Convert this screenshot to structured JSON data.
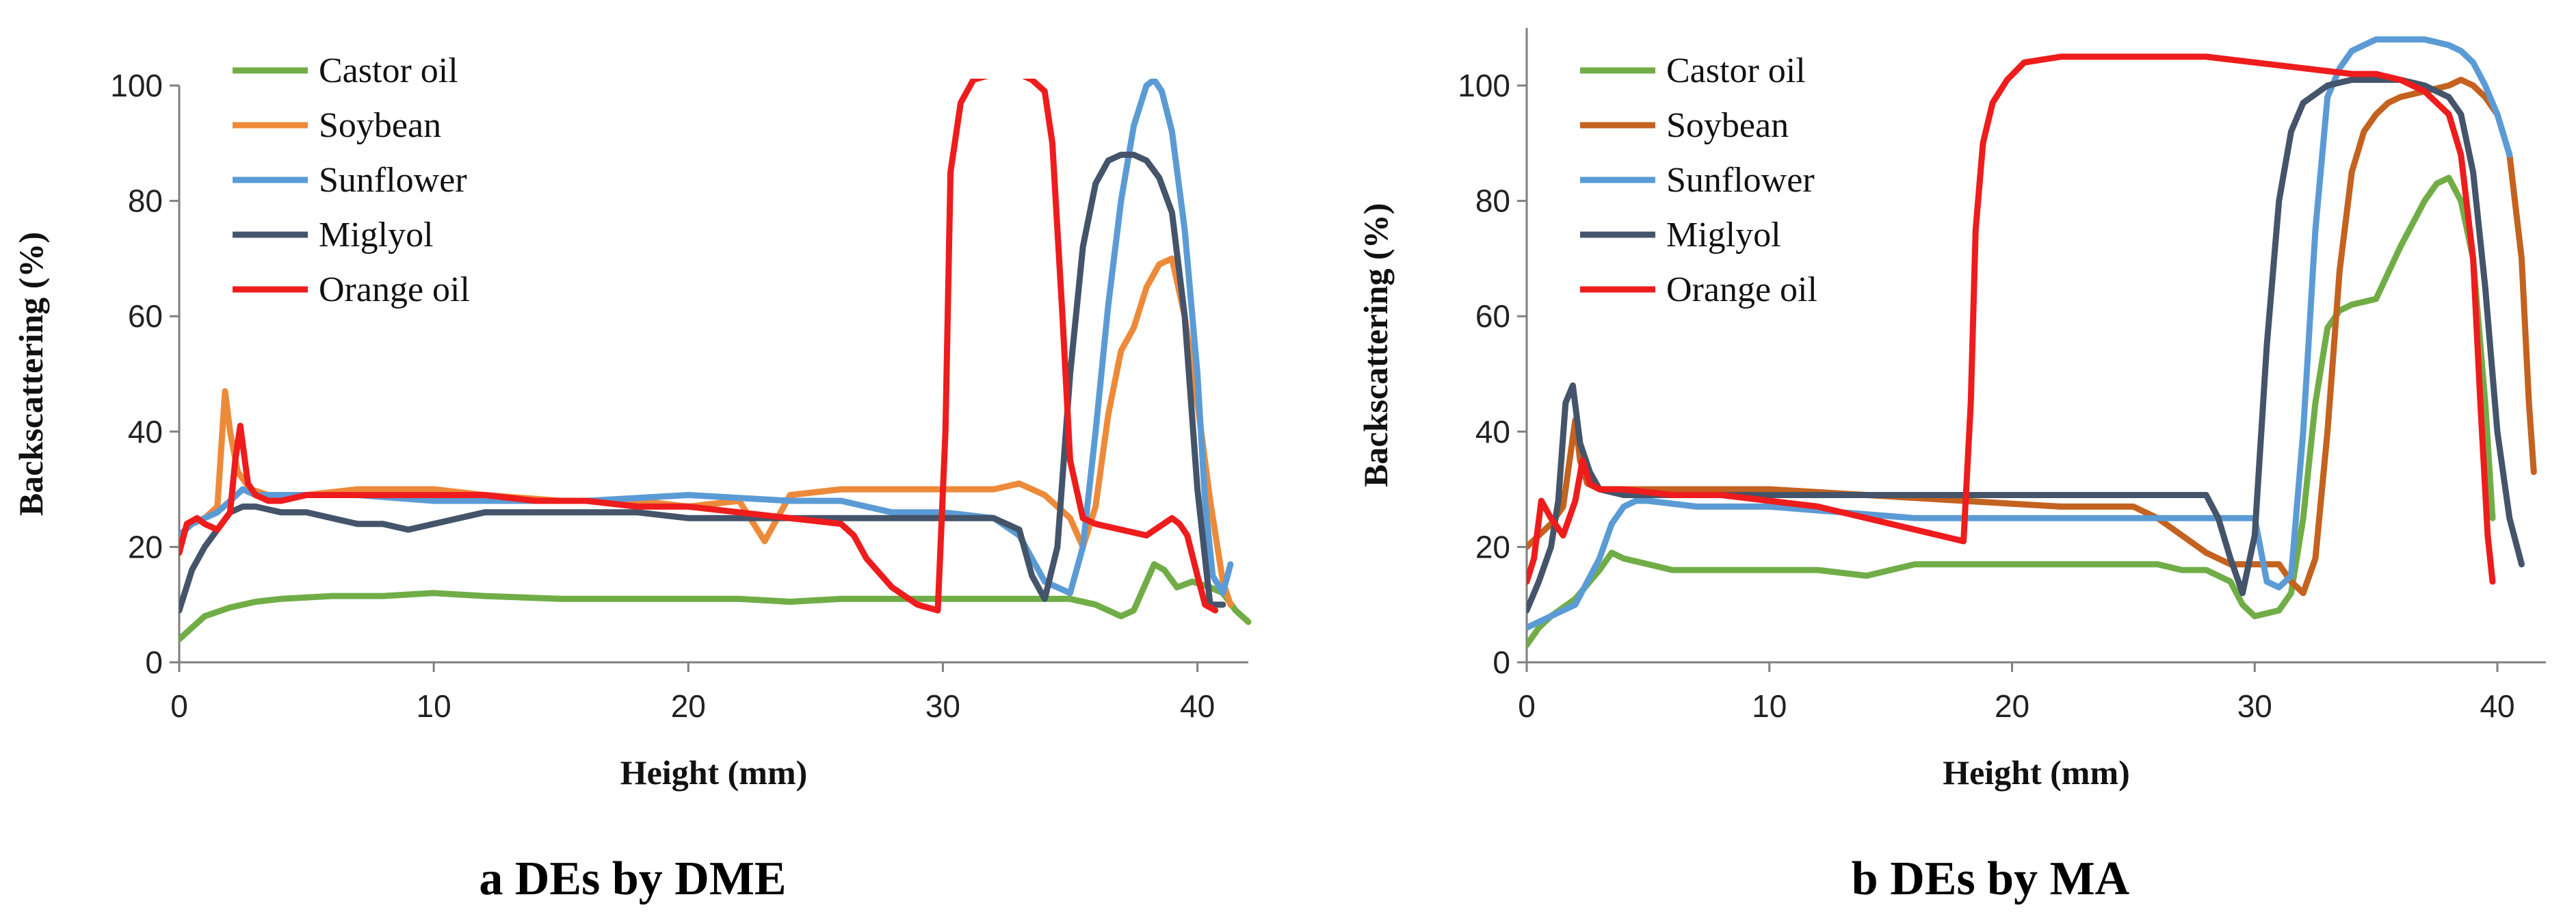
{
  "colors": {
    "Castor oil": "#71ad47",
    "Soybean": "#ed8a3a",
    "Soybean_b": "#c4621f",
    "Sunflower": "#5b9bd5",
    "Miglyol": "#44546a",
    "Orange oil": "#ee1c1c"
  },
  "chart_data": [
    {
      "type": "line",
      "title": "",
      "caption": "a DEs by DME",
      "xlabel": "Height (mm)",
      "ylabel": "Backscattering (%)",
      "xlim": [
        0,
        42
      ],
      "ylim": [
        0,
        100
      ],
      "xticks": [
        0,
        10,
        20,
        30,
        40
      ],
      "yticks": [
        0,
        20,
        40,
        60,
        80,
        100
      ],
      "legend_position": "top-left",
      "series": [
        {
          "name": "Castor oil",
          "color": "#71ad47",
          "x": [
            0,
            0.5,
            1,
            2,
            3,
            4,
            6,
            8,
            10,
            12,
            15,
            18,
            20,
            22,
            24,
            26,
            28,
            30,
            32,
            34,
            35,
            36,
            36.5,
            37,
            37.5,
            38,
            38.3,
            38.7,
            39.2,
            39.8,
            40.5,
            41,
            41.5,
            42
          ],
          "y": [
            4,
            6,
            8,
            9.5,
            10.5,
            11,
            11.5,
            11.5,
            12,
            11.5,
            11,
            11,
            11,
            11,
            10.5,
            11,
            11,
            11,
            11,
            11,
            11,
            10,
            9,
            8,
            9,
            14,
            17,
            16,
            13,
            14,
            13,
            12,
            9,
            7
          ]
        },
        {
          "name": "Soybean",
          "color": "#ed8a3a",
          "x": [
            0,
            0.5,
            1,
            1.5,
            1.8,
            2,
            2.3,
            2.8,
            3.5,
            5,
            7,
            10,
            12,
            15,
            18,
            20,
            22,
            23,
            24,
            26,
            28,
            30,
            32,
            33,
            34,
            35,
            35.5,
            36,
            36.5,
            37,
            37.5,
            38,
            38.5,
            39,
            39.5,
            40,
            40.5,
            41,
            41.3
          ],
          "y": [
            22,
            24,
            25,
            27,
            47,
            40,
            33,
            30,
            29,
            29,
            30,
            30,
            29,
            28,
            28,
            27,
            28,
            21,
            29,
            30,
            30,
            30,
            30,
            31,
            29,
            25,
            20,
            27,
            43,
            54,
            58,
            65,
            69,
            70,
            60,
            45,
            28,
            14,
            10
          ]
        },
        {
          "name": "Sunflower",
          "color": "#5b9bd5",
          "x": [
            0,
            0.5,
            1,
            1.5,
            2,
            2.5,
            3,
            5,
            7,
            10,
            13,
            16,
            20,
            24,
            26,
            28,
            30,
            32,
            33,
            34,
            35,
            35.5,
            36,
            36.5,
            37,
            37.5,
            38,
            38.3,
            38.6,
            39,
            39.5,
            40,
            40.3,
            40.6,
            41,
            41.3
          ],
          "y": [
            22,
            24,
            25,
            26,
            28,
            30,
            29,
            29,
            29,
            28,
            28,
            28,
            29,
            28,
            28,
            26,
            26,
            25,
            22,
            14,
            12,
            20,
            40,
            62,
            80,
            93,
            100,
            101,
            99,
            92,
            75,
            50,
            28,
            15,
            12,
            17
          ]
        },
        {
          "name": "Miglyol",
          "color": "#44546a",
          "x": [
            0,
            0.5,
            1,
            1.5,
            2,
            2.5,
            3,
            4,
            5,
            6,
            7,
            8,
            9,
            10,
            12,
            14,
            16,
            18,
            20,
            22,
            24,
            26,
            28,
            30,
            32,
            33,
            33.5,
            34,
            34.5,
            35,
            35.5,
            36,
            36.5,
            37,
            37.5,
            38,
            38.5,
            39,
            39.5,
            40,
            40.5,
            41
          ],
          "y": [
            9,
            16,
            20,
            23,
            26,
            27,
            27,
            26,
            26,
            25,
            24,
            24,
            23,
            24,
            26,
            26,
            26,
            26,
            25,
            25,
            25,
            25,
            25,
            25,
            25,
            23,
            15,
            11,
            20,
            50,
            72,
            83,
            87,
            88,
            88,
            87,
            84,
            78,
            60,
            30,
            10,
            10
          ]
        },
        {
          "name": "Orange oil",
          "color": "#ee1c1c",
          "x": [
            0,
            0.3,
            0.7,
            1,
            1.5,
            2,
            2.2,
            2.4,
            2.7,
            3,
            3.5,
            4,
            5,
            7,
            10,
            12,
            14,
            16,
            18,
            20,
            22,
            24,
            26,
            26.5,
            27,
            28,
            29,
            29.8,
            30.1,
            30.3,
            30.7,
            31.2,
            32,
            33,
            33.5,
            34,
            34.3,
            34.7,
            35,
            35.5,
            36,
            37,
            38,
            39,
            39.3,
            39.6,
            40,
            40.3,
            40.7
          ],
          "y": [
            19,
            24,
            25,
            24,
            23,
            26,
            35,
            41,
            31,
            29,
            28,
            28,
            29,
            29,
            29,
            29,
            28,
            28,
            27,
            27,
            26,
            25,
            24,
            22,
            18,
            13,
            10,
            9,
            40,
            85,
            97,
            101,
            102,
            102,
            101,
            99,
            90,
            60,
            35,
            25,
            24,
            23,
            22,
            25,
            24,
            22,
            15,
            10,
            9
          ]
        }
      ]
    },
    {
      "type": "line",
      "title": "",
      "caption": "b DEs by MA",
      "xlabel": "Height (mm)",
      "ylabel": "Backscattering (%)",
      "xlim": [
        0,
        42
      ],
      "ylim": [
        0,
        110
      ],
      "xticks": [
        0,
        10,
        20,
        30,
        40
      ],
      "yticks": [
        0,
        20,
        40,
        60,
        80,
        100
      ],
      "legend_position": "top-left",
      "series": [
        {
          "name": "Castor oil",
          "color": "#71ad47",
          "x": [
            0,
            0.5,
            1,
            2,
            3,
            3.5,
            4,
            6,
            8,
            10,
            12,
            14,
            16,
            18,
            20,
            22,
            24,
            26,
            27,
            28,
            29,
            29.5,
            30,
            31,
            31.5,
            32,
            32.5,
            33,
            33.5,
            34,
            35,
            36,
            37,
            37.5,
            38,
            38.5,
            39,
            39.5,
            39.8
          ],
          "y": [
            3,
            6,
            8,
            11,
            16,
            19,
            18,
            16,
            16,
            16,
            16,
            15,
            17,
            17,
            17,
            17,
            17,
            17,
            16,
            16,
            14,
            10,
            8,
            9,
            12,
            25,
            45,
            58,
            61,
            62,
            63,
            72,
            80,
            83,
            84,
            80,
            70,
            45,
            25
          ]
        },
        {
          "name": "Soybean",
          "color": "#c4621f",
          "x": [
            0,
            0.5,
            1,
            1.5,
            2,
            2.2,
            2.5,
            3,
            4,
            6,
            8,
            10,
            14,
            18,
            22,
            24,
            25,
            26,
            27,
            28,
            29,
            30,
            31,
            31.5,
            32,
            32.5,
            33,
            33.5,
            34,
            34.5,
            35,
            35.5,
            36,
            37,
            38,
            38.5,
            39,
            39.5,
            40,
            40.5,
            41,
            41.3,
            41.5
          ],
          "y": [
            20,
            22,
            24,
            27,
            42,
            35,
            31,
            30,
            30,
            30,
            30,
            30,
            29,
            28,
            27,
            27,
            27,
            25,
            22,
            19,
            17,
            17,
            17,
            14,
            12,
            18,
            40,
            68,
            85,
            92,
            95,
            97,
            98,
            99,
            100,
            101,
            100,
            98,
            95,
            88,
            70,
            45,
            33
          ]
        },
        {
          "name": "Sunflower",
          "color": "#5b9bd5",
          "x": [
            0,
            0.5,
            1,
            2,
            3,
            3.5,
            4,
            4.5,
            5,
            7,
            10,
            13,
            16,
            20,
            24,
            28,
            30,
            30.5,
            31,
            31.5,
            32,
            32.5,
            33,
            33.5,
            34,
            34.5,
            35,
            36,
            37,
            38,
            38.5,
            39,
            39.5,
            40,
            40.5
          ],
          "y": [
            6,
            7,
            8,
            10,
            18,
            24,
            27,
            28,
            28,
            27,
            27,
            26,
            25,
            25,
            25,
            25,
            25,
            14,
            13,
            15,
            40,
            75,
            98,
            103,
            106,
            107,
            108,
            108,
            108,
            107,
            106,
            104,
            100,
            95,
            88
          ]
        },
        {
          "name": "Miglyol",
          "color": "#44546a",
          "x": [
            0,
            0.5,
            1,
            1.3,
            1.6,
            1.9,
            2.2,
            2.6,
            3,
            4,
            6,
            8,
            10,
            14,
            18,
            22,
            26,
            28,
            28.5,
            29,
            29.5,
            30,
            30.5,
            31,
            31.5,
            32,
            33,
            34,
            35,
            36,
            37,
            38,
            38.5,
            39,
            39.5,
            40,
            40.5,
            41
          ],
          "y": [
            9,
            14,
            20,
            28,
            45,
            48,
            38,
            33,
            30,
            29,
            29,
            29,
            29,
            29,
            29,
            29,
            29,
            29,
            25,
            18,
            12,
            22,
            55,
            80,
            92,
            97,
            100,
            101,
            101,
            101,
            100,
            98,
            95,
            85,
            65,
            40,
            25,
            17
          ]
        },
        {
          "name": "Orange oil",
          "color": "#ee1c1c",
          "x": [
            0,
            0.3,
            0.6,
            1,
            1.5,
            2,
            2.3,
            2.6,
            3,
            4,
            6,
            8,
            10,
            12,
            14,
            16,
            17,
            18,
            18.3,
            18.5,
            18.8,
            19.2,
            19.8,
            20.5,
            22,
            24,
            26,
            28,
            30,
            32,
            34,
            35,
            36,
            37,
            38,
            38.5,
            39,
            39.3,
            39.6,
            39.8
          ],
          "y": [
            14,
            18,
            28,
            25,
            22,
            28,
            35,
            31,
            30,
            30,
            29,
            29,
            28,
            27,
            25,
            23,
            22,
            21,
            45,
            75,
            90,
            97,
            101,
            104,
            105,
            105,
            105,
            105,
            104,
            103,
            102,
            102,
            101,
            99,
            95,
            88,
            70,
            45,
            22,
            14
          ]
        }
      ]
    }
  ]
}
